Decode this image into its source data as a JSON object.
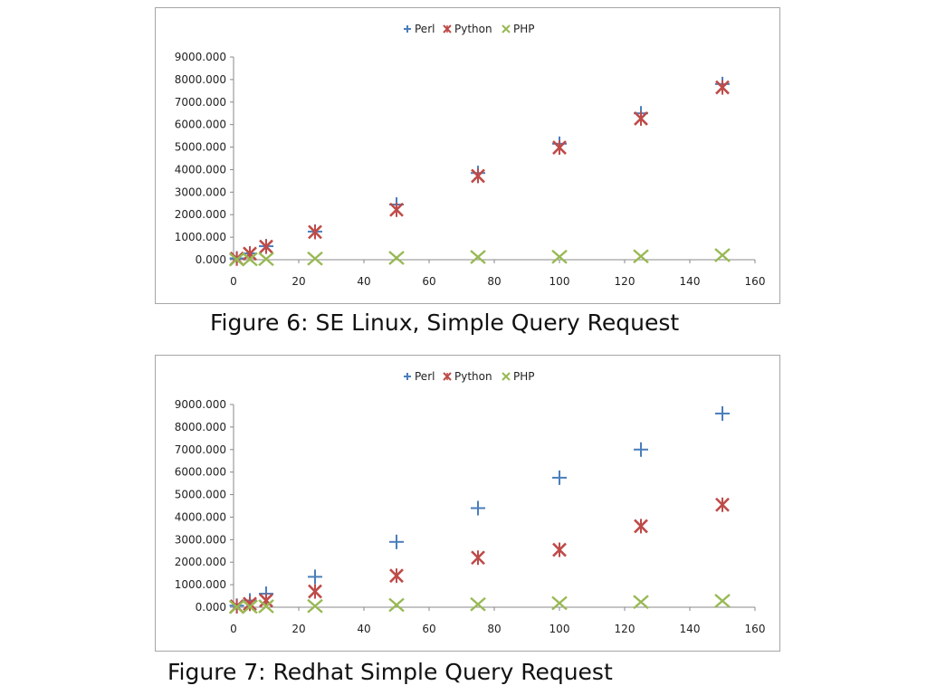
{
  "captions": {
    "figure6": "Figure 6: SE Linux, Simple Query Request",
    "figure7": "Figure 7: Redhat Simple Query Request"
  },
  "colors": {
    "Perl": "#4a7ebb",
    "Python": "#be4b48",
    "PHP": "#98b954"
  },
  "chart_data": [
    {
      "type": "scatter",
      "title": "",
      "xlabel": "",
      "ylabel": "",
      "xlim": [
        0,
        160
      ],
      "ylim": [
        0,
        9000
      ],
      "xticks": [
        0,
        20,
        40,
        60,
        80,
        100,
        120,
        140,
        160
      ],
      "yticks": [
        0,
        1000,
        2000,
        3000,
        4000,
        5000,
        6000,
        7000,
        8000,
        9000
      ],
      "ytick_labels": [
        "0.000",
        "1000.000",
        "2000.000",
        "3000.000",
        "4000.000",
        "5000.000",
        "6000.000",
        "7000.000",
        "8000.000",
        "9000.000"
      ],
      "grid": false,
      "legend": "top-center",
      "series": [
        {
          "name": "Perl",
          "marker": "plus",
          "x": [
            1,
            5,
            10,
            25,
            50,
            75,
            100,
            125,
            150
          ],
          "y": [
            60,
            280,
            600,
            1250,
            2450,
            3850,
            5150,
            6500,
            7800
          ]
        },
        {
          "name": "Python",
          "marker": "star",
          "x": [
            1,
            5,
            10,
            25,
            50,
            75,
            100,
            125,
            150
          ],
          "y": [
            50,
            270,
            580,
            1230,
            2220,
            3720,
            4980,
            6270,
            7650
          ]
        },
        {
          "name": "PHP",
          "marker": "x",
          "x": [
            1,
            5,
            10,
            25,
            50,
            75,
            100,
            125,
            150
          ],
          "y": [
            10,
            20,
            30,
            50,
            80,
            120,
            130,
            150,
            200
          ]
        }
      ]
    },
    {
      "type": "scatter",
      "title": "",
      "xlabel": "",
      "ylabel": "",
      "xlim": [
        0,
        160
      ],
      "ylim": [
        0,
        9000
      ],
      "xticks": [
        0,
        20,
        40,
        60,
        80,
        100,
        120,
        140,
        160
      ],
      "yticks": [
        0,
        1000,
        2000,
        3000,
        4000,
        5000,
        6000,
        7000,
        8000,
        9000
      ],
      "ytick_labels": [
        "0.000",
        "1000.000",
        "2000.000",
        "3000.000",
        "4000.000",
        "5000.000",
        "6000.000",
        "7000.000",
        "8000.000",
        "9000.000"
      ],
      "grid": false,
      "legend": "top-center",
      "series": [
        {
          "name": "Perl",
          "marker": "plus",
          "x": [
            1,
            5,
            10,
            25,
            50,
            75,
            100,
            125,
            150
          ],
          "y": [
            70,
            300,
            600,
            1350,
            2900,
            4400,
            5750,
            7000,
            8600
          ]
        },
        {
          "name": "Python",
          "marker": "star",
          "x": [
            1,
            5,
            10,
            25,
            50,
            75,
            100,
            125,
            150
          ],
          "y": [
            40,
            150,
            300,
            700,
            1400,
            2200,
            2550,
            3600,
            4550
          ]
        },
        {
          "name": "PHP",
          "marker": "x",
          "x": [
            1,
            5,
            10,
            25,
            50,
            75,
            100,
            125,
            150
          ],
          "y": [
            10,
            20,
            40,
            50,
            100,
            130,
            180,
            230,
            280
          ]
        }
      ]
    }
  ]
}
